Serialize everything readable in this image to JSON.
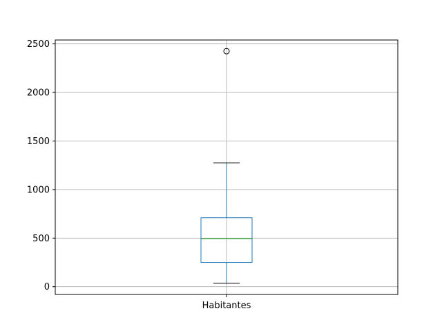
{
  "chart_data": {
    "type": "box",
    "title": "",
    "xlabel": "",
    "ylabel": "",
    "categories": [
      "Habitantes"
    ],
    "ylim": [
      -80,
      2540
    ],
    "yticks": [
      0,
      500,
      1000,
      1500,
      2000,
      2500
    ],
    "ytick_labels": [
      "0",
      "500",
      "1000",
      "1500",
      "2000",
      "2500"
    ],
    "grid": true,
    "legend": "none",
    "boxes": [
      {
        "category": "Habitantes",
        "whisker_low": 35,
        "q1": 250,
        "median": 495,
        "q3": 710,
        "whisker_high": 1275,
        "outliers": [
          2425
        ]
      }
    ],
    "colors": {
      "box": "#1f77b4",
      "median": "#2ca02c",
      "whisker_cap": "#000000",
      "grid": "#b0b0b0",
      "outlier_edge": "#000000"
    }
  }
}
